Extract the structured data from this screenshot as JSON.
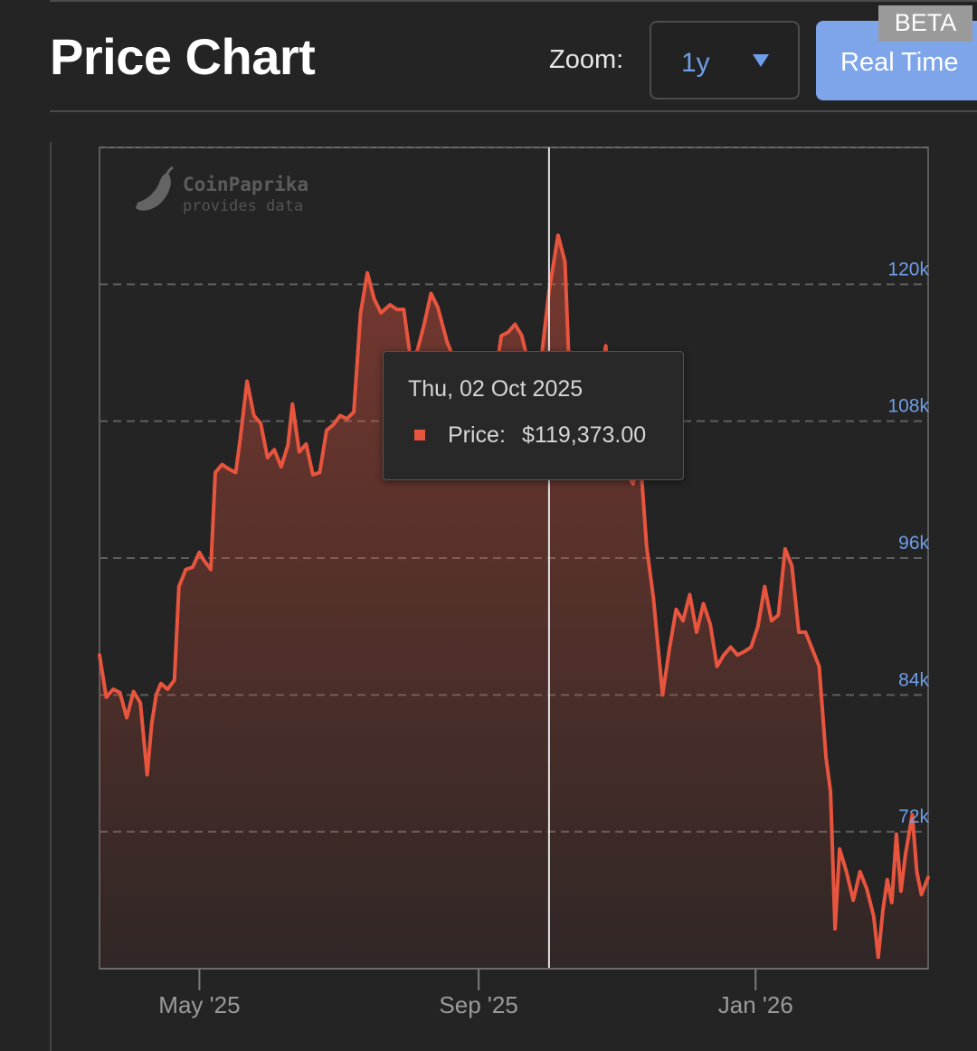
{
  "header": {
    "title": "Price Chart",
    "zoom_label": "Zoom:",
    "zoom_value": "1y",
    "realtime_label": "Real Time",
    "beta_label": "BETA"
  },
  "watermark": {
    "brand": "CoinPaprika",
    "tagline": "provides data",
    "icon": "chili-pepper-icon"
  },
  "tooltip": {
    "date": "Thu, 02 Oct 2025",
    "price_label": "Price:",
    "price_value": "$119,373.00"
  },
  "colors": {
    "background": "#242424",
    "line": "#e8553f",
    "accent": "#6f9ee8",
    "button": "#7ea5ea"
  },
  "chart_data": {
    "type": "area",
    "title": "",
    "xlabel": "",
    "ylabel": "",
    "x_tick_labels": [
      "May '25",
      "Sep '25",
      "Jan '26"
    ],
    "x_ticks": [
      "2025-05-01",
      "2025-09-01",
      "2026-01-01"
    ],
    "y_tick_labels": [
      "72k",
      "84k",
      "96k",
      "108k",
      "120k"
    ],
    "y_ticks": [
      72000,
      84000,
      96000,
      108000,
      120000
    ],
    "ylim": [
      60000,
      132000
    ],
    "xlim": [
      "2025-03-18",
      "2026-03-18"
    ],
    "grid": true,
    "crosshair_date": "2025-10-02",
    "series": [
      {
        "values": [
          [
            "2025-03-18",
            87500
          ],
          [
            "2025-03-21",
            83800
          ],
          [
            "2025-03-24",
            84500
          ],
          [
            "2025-03-27",
            84200
          ],
          [
            "2025-03-30",
            82000
          ],
          [
            "2025-04-02",
            84300
          ],
          [
            "2025-04-05",
            83300
          ],
          [
            "2025-04-08",
            77000
          ],
          [
            "2025-04-10",
            81500
          ],
          [
            "2025-04-12",
            84000
          ],
          [
            "2025-04-14",
            85000
          ],
          [
            "2025-04-17",
            84500
          ],
          [
            "2025-04-20",
            85300
          ],
          [
            "2025-04-22",
            93500
          ],
          [
            "2025-04-25",
            95000
          ],
          [
            "2025-04-28",
            95200
          ],
          [
            "2025-05-01",
            96500
          ],
          [
            "2025-05-03",
            95800
          ],
          [
            "2025-05-06",
            95000
          ],
          [
            "2025-05-08",
            103500
          ],
          [
            "2025-05-11",
            104200
          ],
          [
            "2025-05-14",
            103800
          ],
          [
            "2025-05-17",
            103500
          ],
          [
            "2025-05-19",
            106500
          ],
          [
            "2025-05-22",
            111500
          ],
          [
            "2025-05-25",
            108500
          ],
          [
            "2025-05-28",
            107800
          ],
          [
            "2025-05-31",
            104800
          ],
          [
            "2025-06-03",
            105500
          ],
          [
            "2025-06-06",
            104000
          ],
          [
            "2025-06-09",
            105900
          ],
          [
            "2025-06-11",
            109500
          ],
          [
            "2025-06-14",
            105300
          ],
          [
            "2025-06-17",
            106000
          ],
          [
            "2025-06-20",
            103300
          ],
          [
            "2025-06-23",
            103500
          ],
          [
            "2025-06-26",
            107200
          ],
          [
            "2025-06-29",
            107700
          ],
          [
            "2025-07-02",
            108500
          ],
          [
            "2025-07-05",
            108200
          ],
          [
            "2025-07-08",
            108800
          ],
          [
            "2025-07-11",
            117500
          ],
          [
            "2025-07-14",
            121000
          ],
          [
            "2025-07-17",
            118700
          ],
          [
            "2025-07-20",
            117500
          ],
          [
            "2025-07-24",
            118200
          ],
          [
            "2025-07-27",
            117800
          ],
          [
            "2025-07-30",
            117800
          ],
          [
            "2025-08-02",
            113500
          ],
          [
            "2025-08-05",
            114200
          ],
          [
            "2025-08-08",
            116500
          ],
          [
            "2025-08-11",
            119200
          ],
          [
            "2025-08-14",
            118000
          ],
          [
            "2025-08-18",
            115000
          ],
          [
            "2025-08-21",
            113500
          ],
          [
            "2025-08-24",
            111000
          ],
          [
            "2025-08-27",
            110500
          ],
          [
            "2025-08-30",
            108300
          ],
          [
            "2025-09-02",
            111200
          ],
          [
            "2025-09-05",
            110800
          ],
          [
            "2025-09-08",
            111500
          ],
          [
            "2025-09-11",
            115500
          ],
          [
            "2025-09-14",
            115800
          ],
          [
            "2025-09-17",
            116500
          ],
          [
            "2025-09-20",
            115500
          ],
          [
            "2025-09-23",
            113000
          ],
          [
            "2025-09-26",
            109300
          ],
          [
            "2025-09-29",
            114200
          ],
          [
            "2025-10-02",
            119373
          ],
          [
            "2025-10-06",
            124300
          ],
          [
            "2025-10-09",
            122000
          ],
          [
            "2025-10-11",
            112000
          ],
          [
            "2025-10-14",
            113000
          ],
          [
            "2025-10-17",
            107000
          ],
          [
            "2025-10-20",
            110500
          ],
          [
            "2025-10-23",
            110000
          ],
          [
            "2025-10-27",
            114600
          ],
          [
            "2025-10-30",
            108300
          ],
          [
            "2025-11-02",
            110000
          ],
          [
            "2025-11-05",
            103500
          ],
          [
            "2025-11-08",
            102500
          ],
          [
            "2025-11-11",
            105300
          ],
          [
            "2025-11-14",
            97000
          ],
          [
            "2025-11-17",
            92500
          ],
          [
            "2025-11-21",
            84000
          ],
          [
            "2025-11-24",
            88000
          ],
          [
            "2025-11-27",
            91500
          ],
          [
            "2025-11-30",
            90500
          ],
          [
            "2025-12-03",
            92800
          ],
          [
            "2025-12-06",
            89500
          ],
          [
            "2025-12-09",
            92000
          ],
          [
            "2025-12-12",
            90200
          ],
          [
            "2025-12-15",
            86500
          ],
          [
            "2025-12-18",
            87500
          ],
          [
            "2025-12-21",
            88200
          ],
          [
            "2025-12-24",
            87500
          ],
          [
            "2025-12-27",
            87800
          ],
          [
            "2025-12-30",
            88200
          ],
          [
            "2026-01-02",
            90000
          ],
          [
            "2026-01-05",
            93500
          ],
          [
            "2026-01-08",
            90500
          ],
          [
            "2026-01-11",
            91000
          ],
          [
            "2026-01-14",
            96800
          ],
          [
            "2026-01-17",
            95300
          ],
          [
            "2026-01-20",
            89500
          ],
          [
            "2026-01-23",
            89500
          ],
          [
            "2026-01-26",
            88000
          ],
          [
            "2026-01-29",
            86500
          ],
          [
            "2026-02-01",
            78500
          ],
          [
            "2026-02-03",
            75500
          ],
          [
            "2026-02-05",
            63500
          ],
          [
            "2026-02-07",
            70500
          ],
          [
            "2026-02-10",
            68500
          ],
          [
            "2026-02-13",
            66000
          ],
          [
            "2026-02-16",
            68500
          ],
          [
            "2026-02-19",
            67000
          ],
          [
            "2026-02-22",
            64600
          ],
          [
            "2026-02-24",
            61000
          ],
          [
            "2026-02-26",
            65000
          ],
          [
            "2026-02-28",
            67800
          ],
          [
            "2026-03-02",
            65800
          ],
          [
            "2026-03-04",
            71800
          ],
          [
            "2026-03-06",
            66800
          ],
          [
            "2026-03-08",
            70000
          ],
          [
            "2026-03-11",
            73500
          ],
          [
            "2026-03-13",
            68500
          ],
          [
            "2026-03-15",
            66500
          ],
          [
            "2026-03-18",
            68000
          ]
        ]
      }
    ]
  }
}
